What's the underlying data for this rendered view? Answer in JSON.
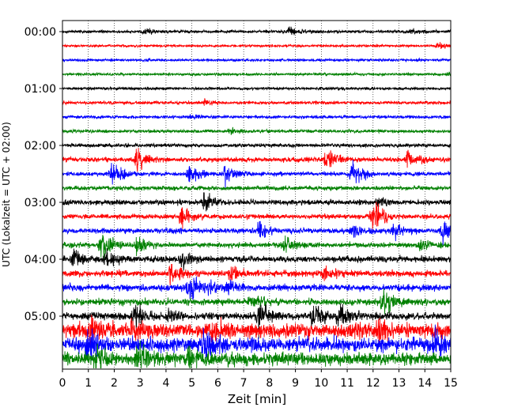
{
  "chart_data": {
    "type": "line",
    "xlabel": "Zeit  [min]",
    "ylabel": "UTC (Lokalzeit = UTC + 02:00)",
    "xlim": [
      0,
      15
    ],
    "x_ticks": [
      "0",
      "1",
      "2",
      "3",
      "4",
      "5",
      "6",
      "7",
      "8",
      "9",
      "10",
      "11",
      "12",
      "13",
      "14",
      "15"
    ],
    "y_tick_labels": [
      "00:00",
      "01:00",
      "02:00",
      "03:00",
      "04:00",
      "05:00"
    ],
    "y_tick_rows": [
      0,
      4,
      8,
      12,
      16,
      20
    ],
    "vertical_grid": true,
    "grid_style": "dotted",
    "minutes_per_row": 15,
    "series_color_cycle": [
      "#000000",
      "#ff0000",
      "#0000ff",
      "#008000"
    ],
    "rows": [
      {
        "start": "00:00",
        "level": 1.2,
        "events": [
          {
            "t": 3.2,
            "a": 2
          },
          {
            "t": 8.8,
            "a": 4
          },
          {
            "t": 13.5,
            "a": 2
          }
        ]
      },
      {
        "start": "00:15",
        "level": 1.0,
        "events": [
          {
            "t": 14.5,
            "a": 3
          }
        ]
      },
      {
        "start": "00:30",
        "level": 1.1,
        "events": []
      },
      {
        "start": "00:45",
        "level": 1.1,
        "events": [
          {
            "t": 14.9,
            "a": 2
          }
        ]
      },
      {
        "start": "01:00",
        "level": 1.2,
        "events": []
      },
      {
        "start": "01:15",
        "level": 1.3,
        "events": [
          {
            "t": 5.5,
            "a": 2
          }
        ]
      },
      {
        "start": "01:30",
        "level": 1.3,
        "events": [
          {
            "t": 5.0,
            "a": 2
          }
        ]
      },
      {
        "start": "01:45",
        "level": 1.4,
        "events": [
          {
            "t": 6.5,
            "a": 2
          }
        ]
      },
      {
        "start": "02:00",
        "level": 1.5,
        "events": []
      },
      {
        "start": "02:15",
        "level": 2.0,
        "events": [
          {
            "t": 2.9,
            "a": 9
          },
          {
            "t": 10.2,
            "a": 9
          },
          {
            "t": 13.3,
            "a": 8
          }
        ]
      },
      {
        "start": "02:30",
        "level": 1.8,
        "events": [
          {
            "t": 1.9,
            "a": 12
          },
          {
            "t": 4.9,
            "a": 8
          },
          {
            "t": 6.3,
            "a": 8
          },
          {
            "t": 11.2,
            "a": 10
          }
        ]
      },
      {
        "start": "02:45",
        "level": 1.8,
        "events": []
      },
      {
        "start": "03:00",
        "level": 2.2,
        "events": [
          {
            "t": 5.5,
            "a": 8
          },
          {
            "t": 12.2,
            "a": 4
          }
        ]
      },
      {
        "start": "03:15",
        "level": 2.0,
        "events": [
          {
            "t": 4.6,
            "a": 10
          },
          {
            "t": 12.0,
            "a": 14
          }
        ]
      },
      {
        "start": "03:30",
        "level": 2.2,
        "events": [
          {
            "t": 7.6,
            "a": 8
          },
          {
            "t": 11.2,
            "a": 6
          },
          {
            "t": 12.8,
            "a": 6
          },
          {
            "t": 14.7,
            "a": 10
          }
        ]
      },
      {
        "start": "03:45",
        "level": 2.2,
        "events": [
          {
            "t": 1.5,
            "a": 12
          },
          {
            "t": 2.9,
            "a": 10
          },
          {
            "t": 8.6,
            "a": 6
          },
          {
            "t": 13.8,
            "a": 4
          }
        ]
      },
      {
        "start": "04:00",
        "level": 2.6,
        "events": [
          {
            "t": 0.4,
            "a": 10
          },
          {
            "t": 1.7,
            "a": 6
          },
          {
            "t": 4.6,
            "a": 7
          }
        ]
      },
      {
        "start": "04:15",
        "level": 2.6,
        "events": [
          {
            "t": 4.2,
            "a": 8
          },
          {
            "t": 6.5,
            "a": 6
          },
          {
            "t": 10.1,
            "a": 6
          }
        ]
      },
      {
        "start": "04:30",
        "level": 2.8,
        "events": [
          {
            "t": 4.9,
            "a": 12
          },
          {
            "t": 5.7,
            "a": 5
          },
          {
            "t": 6.4,
            "a": 5
          }
        ]
      },
      {
        "start": "04:45",
        "level": 2.8,
        "events": [
          {
            "t": 12.4,
            "a": 12
          },
          {
            "t": 7.3,
            "a": 5
          }
        ]
      },
      {
        "start": "05:00",
        "level": 3.0,
        "events": [
          {
            "t": 2.7,
            "a": 12
          },
          {
            "t": 7.6,
            "a": 14
          },
          {
            "t": 9.7,
            "a": 14
          },
          {
            "t": 10.7,
            "a": 12
          },
          {
            "t": 4.1,
            "a": 6
          }
        ]
      },
      {
        "start": "05:15",
        "level": 6.0,
        "events": [
          {
            "t": 1.1,
            "a": 10
          },
          {
            "t": 2.7,
            "a": 12
          },
          {
            "t": 5.8,
            "a": 8
          },
          {
            "t": 12.2,
            "a": 8
          }
        ]
      },
      {
        "start": "05:30",
        "level": 6.0,
        "events": [
          {
            "t": 1.0,
            "a": 14
          },
          {
            "t": 5.5,
            "a": 12
          },
          {
            "t": 14.4,
            "a": 10
          }
        ]
      },
      {
        "start": "05:45",
        "level": 5.5,
        "events": [
          {
            "t": 1.3,
            "a": 10
          },
          {
            "t": 2.9,
            "a": 10
          },
          {
            "t": 4.9,
            "a": 8
          }
        ]
      }
    ]
  }
}
